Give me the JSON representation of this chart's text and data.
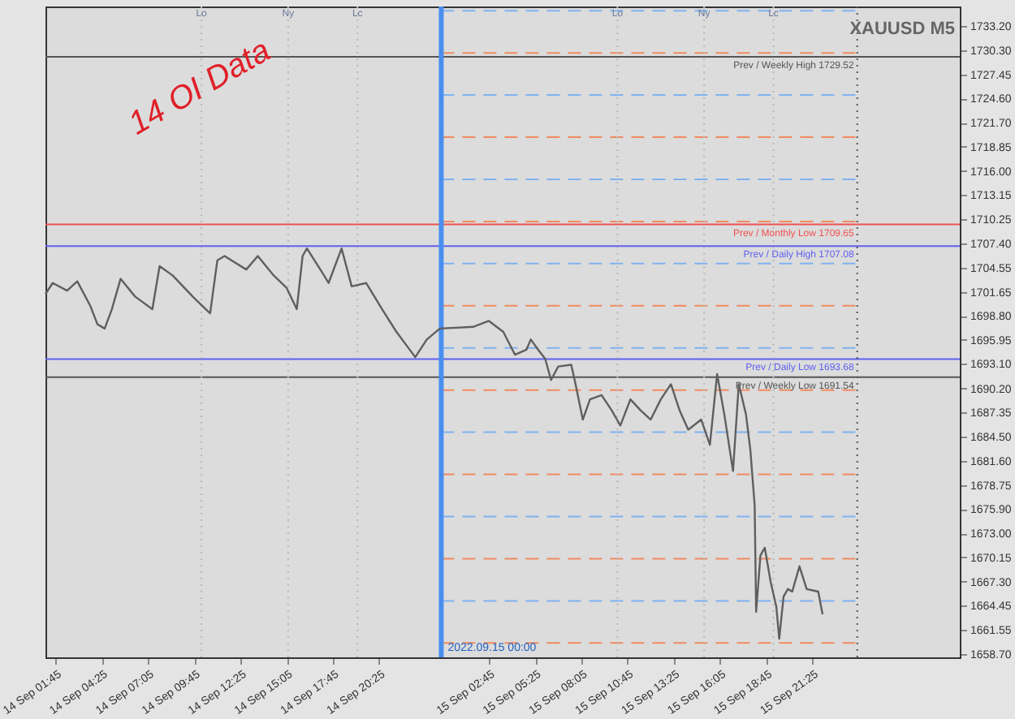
{
  "chart_data": {
    "type": "line",
    "title": "XAUUSD M5",
    "annotations": [
      "14 OI Data"
    ],
    "series": [
      {
        "color": "#5f5f5f",
        "x": [
          "2022-09-14T01:10",
          "2022-09-14T01:35",
          "2022-09-14T02:25",
          "2022-09-14T03:00",
          "2022-09-14T03:45",
          "2022-09-14T04:10",
          "2022-09-14T04:35",
          "2022-09-14T05:00",
          "2022-09-14T05:30",
          "2022-09-14T06:20",
          "2022-09-14T07:20",
          "2022-09-14T07:45",
          "2022-09-14T08:30",
          "2022-09-14T09:45",
          "2022-09-14T10:40",
          "2022-09-14T11:05",
          "2022-09-14T11:30",
          "2022-09-14T12:45",
          "2022-09-14T13:25",
          "2022-09-14T14:20",
          "2022-09-14T15:05",
          "2022-09-14T15:40",
          "2022-09-14T16:00",
          "2022-09-14T16:15",
          "2022-09-14T17:05",
          "2022-09-14T17:30",
          "2022-09-14T18:15",
          "2022-09-14T18:50",
          "2022-09-14T19:40",
          "2022-09-14T20:35",
          "2022-09-14T21:25",
          "2022-09-14T22:15",
          "2022-09-14T22:30",
          "2022-09-14T23:10",
          "2022-09-14T23:55",
          "2022-09-15T01:50",
          "2022-09-15T02:45",
          "2022-09-15T03:35",
          "2022-09-15T04:15",
          "2022-09-15T04:55",
          "2022-09-15T05:10",
          "2022-09-15T05:35",
          "2022-09-15T06:00",
          "2022-09-15T06:20",
          "2022-09-15T06:45",
          "2022-09-15T07:30",
          "2022-09-15T07:45",
          "2022-09-15T08:10",
          "2022-09-15T08:35",
          "2022-09-15T09:15",
          "2022-09-15T09:50",
          "2022-09-15T10:20",
          "2022-09-15T10:55",
          "2022-09-15T11:30",
          "2022-09-15T12:05",
          "2022-09-15T12:40",
          "2022-09-15T13:15",
          "2022-09-15T13:45",
          "2022-09-15T14:15",
          "2022-09-15T15:00",
          "2022-09-15T15:30",
          "2022-09-15T15:55",
          "2022-09-15T16:20",
          "2022-09-15T16:50",
          "2022-09-15T17:10",
          "2022-09-15T17:35",
          "2022-09-15T17:50",
          "2022-09-15T18:05",
          "2022-09-15T18:10",
          "2022-09-15T18:25",
          "2022-09-15T18:40",
          "2022-09-15T19:00",
          "2022-09-15T19:20",
          "2022-09-15T19:30",
          "2022-09-15T19:45",
          "2022-09-15T20:00",
          "2022-09-15T20:15",
          "2022-09-15T20:40",
          "2022-09-15T21:05",
          "2022-09-15T21:45",
          "2022-09-15T22:00"
        ],
        "values": [
          1701.4,
          1702.7,
          1701.8,
          1702.9,
          1700.0,
          1697.8,
          1697.3,
          1699.6,
          1703.2,
          1701.1,
          1699.6,
          1704.7,
          1703.6,
          1700.9,
          1699.1,
          1705.4,
          1705.9,
          1704.3,
          1705.9,
          1703.6,
          1702.1,
          1699.6,
          1705.9,
          1706.8,
          1704.1,
          1702.7,
          1706.8,
          1702.3,
          1702.7,
          1699.6,
          1696.9,
          1694.6,
          1693.9,
          1696.0,
          1697.3,
          1697.5,
          1698.2,
          1696.9,
          1694.2,
          1694.8,
          1696.0,
          1694.8,
          1693.7,
          1691.2,
          1692.8,
          1693.0,
          1690.7,
          1686.5,
          1688.9,
          1689.4,
          1687.6,
          1685.8,
          1688.9,
          1687.6,
          1686.5,
          1688.9,
          1690.7,
          1687.6,
          1685.3,
          1686.5,
          1683.5,
          1691.9,
          1687.1,
          1680.4,
          1690.7,
          1687.1,
          1682.9,
          1676.3,
          1663.7,
          1670.4,
          1671.3,
          1667.3,
          1664.3,
          1660.5,
          1665.5,
          1666.4,
          1666.1,
          1669.1,
          1666.4,
          1666.1,
          1663.4
        ]
      }
    ],
    "xlim": [
      "2022-09-14T01:10",
      "2022-09-16T05:55"
    ],
    "xticks": [
      {
        "value": "2022-09-14T01:45",
        "label": "14 Sep 01:45"
      },
      {
        "value": "2022-09-14T04:25",
        "label": "14 Sep 04:25"
      },
      {
        "value": "2022-09-14T07:05",
        "label": "14 Sep 07:05"
      },
      {
        "value": "2022-09-14T09:45",
        "label": "14 Sep 09:45"
      },
      {
        "value": "2022-09-14T12:25",
        "label": "14 Sep 12:25"
      },
      {
        "value": "2022-09-14T15:05",
        "label": "14 Sep 15:05"
      },
      {
        "value": "2022-09-14T17:45",
        "label": "14 Sep 17:45"
      },
      {
        "value": "2022-09-14T20:25",
        "label": "14 Sep 20:25"
      },
      {
        "value": "2022-09-15T02:45",
        "label": "15 Sep 02:45"
      },
      {
        "value": "2022-09-15T05:25",
        "label": "15 Sep 05:25"
      },
      {
        "value": "2022-09-15T08:05",
        "label": "15 Sep 08:05"
      },
      {
        "value": "2022-09-15T10:45",
        "label": "15 Sep 10:45"
      },
      {
        "value": "2022-09-15T13:25",
        "label": "15 Sep 13:25"
      },
      {
        "value": "2022-09-15T16:05",
        "label": "15 Sep 16:05"
      },
      {
        "value": "2022-09-15T18:45",
        "label": "15 Sep 18:45"
      },
      {
        "value": "2022-09-15T21:25",
        "label": "15 Sep 21:25"
      }
    ],
    "ylim": [
      1658.3,
      1735.5
    ],
    "yticks": [
      {
        "value": 1733.2,
        "label": "1733.20"
      },
      {
        "value": 1730.3,
        "label": "1730.30"
      },
      {
        "value": 1727.45,
        "label": "1727.45"
      },
      {
        "value": 1724.6,
        "label": "1724.60"
      },
      {
        "value": 1721.7,
        "label": "1721.70"
      },
      {
        "value": 1718.85,
        "label": "1718.85"
      },
      {
        "value": 1716.0,
        "label": "1716.00"
      },
      {
        "value": 1713.15,
        "label": "1713.15"
      },
      {
        "value": 1710.25,
        "label": "1710.25"
      },
      {
        "value": 1707.4,
        "label": "1707.40"
      },
      {
        "value": 1704.55,
        "label": "1704.55"
      },
      {
        "value": 1701.65,
        "label": "1701.65"
      },
      {
        "value": 1698.8,
        "label": "1698.80"
      },
      {
        "value": 1695.95,
        "label": "1695.95"
      },
      {
        "value": 1693.1,
        "label": "1693.10"
      },
      {
        "value": 1690.2,
        "label": "1690.20"
      },
      {
        "value": 1687.35,
        "label": "1687.35"
      },
      {
        "value": 1684.5,
        "label": "1684.50"
      },
      {
        "value": 1681.6,
        "label": "1681.60"
      },
      {
        "value": 1678.75,
        "label": "1678.75"
      },
      {
        "value": 1675.9,
        "label": "1675.90"
      },
      {
        "value": 1673.0,
        "label": "1673.00"
      },
      {
        "value": 1670.15,
        "label": "1670.15"
      },
      {
        "value": 1667.3,
        "label": "1667.30"
      },
      {
        "value": 1664.45,
        "label": "1664.45"
      },
      {
        "value": 1661.55,
        "label": "1661.55"
      },
      {
        "value": 1658.7,
        "label": "1658.70"
      }
    ],
    "grid": false,
    "ref_lines": [
      {
        "axis": "x",
        "value": "2022-09-15T00:00",
        "label": "2022.09.15 00:00",
        "color": "#4a8ff0",
        "line_style": "solid"
      },
      {
        "axis": "x",
        "value": "2022-09-16T00:00",
        "color": "#555555",
        "line_style": "dotted"
      },
      {
        "axis": "x",
        "value": "2022-09-14T10:10",
        "label": "Lo",
        "color": "#b8b8b8",
        "line_style": "dotted"
      },
      {
        "axis": "x",
        "value": "2022-09-14T15:10",
        "label": "Ny",
        "color": "#b8b8b8",
        "line_style": "dotted"
      },
      {
        "axis": "x",
        "value": "2022-09-14T19:10",
        "label": "Lc",
        "color": "#b8b8b8",
        "line_style": "dotted"
      },
      {
        "axis": "x",
        "value": "2022-09-15T10:10",
        "label": "Lo",
        "color": "#b8b8b8",
        "line_style": "dotted"
      },
      {
        "axis": "x",
        "value": "2022-09-15T15:10",
        "label": "Ny",
        "color": "#b8b8b8",
        "line_style": "dotted"
      },
      {
        "axis": "x",
        "value": "2022-09-15T19:10",
        "label": "Lc",
        "color": "#b8b8b8",
        "line_style": "dotted"
      },
      {
        "axis": "y",
        "value": 1729.52,
        "label": "Prev / Weekly High 1729.52",
        "color": "#555555",
        "line_style": "solid"
      },
      {
        "axis": "y",
        "value": 1709.65,
        "label": "Prev / Monthly Low 1709.65",
        "color": "#f05050",
        "line_style": "solid"
      },
      {
        "axis": "y",
        "value": 1707.08,
        "label": "Prev / Daily High 1707.08",
        "color": "#6060f0",
        "line_style": "solid"
      },
      {
        "axis": "y",
        "value": 1693.68,
        "label": "Prev / Daily Low 1693.68",
        "color": "#6060f0",
        "line_style": "solid"
      },
      {
        "axis": "y",
        "value": 1691.54,
        "label": "Prev / Weekly Low 1691.54",
        "color": "#555555",
        "line_style": "solid"
      },
      {
        "axis": "y",
        "value": 1735.0,
        "color": "#7fb2f0",
        "line_style": "dashed"
      },
      {
        "axis": "y",
        "value": 1730.0,
        "color": "#f08a60",
        "line_style": "dashed"
      },
      {
        "axis": "y",
        "value": 1725.0,
        "color": "#7fb2f0",
        "line_style": "dashed"
      },
      {
        "axis": "y",
        "value": 1720.0,
        "color": "#f08a60",
        "line_style": "dashed"
      },
      {
        "axis": "y",
        "value": 1715.0,
        "color": "#7fb2f0",
        "line_style": "dashed"
      },
      {
        "axis": "y",
        "value": 1710.0,
        "color": "#f08a60",
        "line_style": "dashed"
      },
      {
        "axis": "y",
        "value": 1705.0,
        "color": "#7fb2f0",
        "line_style": "dashed"
      },
      {
        "axis": "y",
        "value": 1700.0,
        "color": "#f08a60",
        "line_style": "dashed"
      },
      {
        "axis": "y",
        "value": 1695.0,
        "color": "#7fb2f0",
        "line_style": "dashed"
      },
      {
        "axis": "y",
        "value": 1690.0,
        "color": "#f08a60",
        "line_style": "dashed"
      },
      {
        "axis": "y",
        "value": 1685.0,
        "color": "#7fb2f0",
        "line_style": "dashed"
      },
      {
        "axis": "y",
        "value": 1680.0,
        "color": "#f08a60",
        "line_style": "dashed"
      },
      {
        "axis": "y",
        "value": 1675.0,
        "color": "#7fb2f0",
        "line_style": "dashed"
      },
      {
        "axis": "y",
        "value": 1670.0,
        "color": "#f08a60",
        "line_style": "dashed"
      },
      {
        "axis": "y",
        "value": 1665.0,
        "color": "#7fb2f0",
        "line_style": "dashed"
      },
      {
        "axis": "y",
        "value": 1660.0,
        "color": "#f08a60",
        "line_style": "dashed"
      }
    ]
  }
}
